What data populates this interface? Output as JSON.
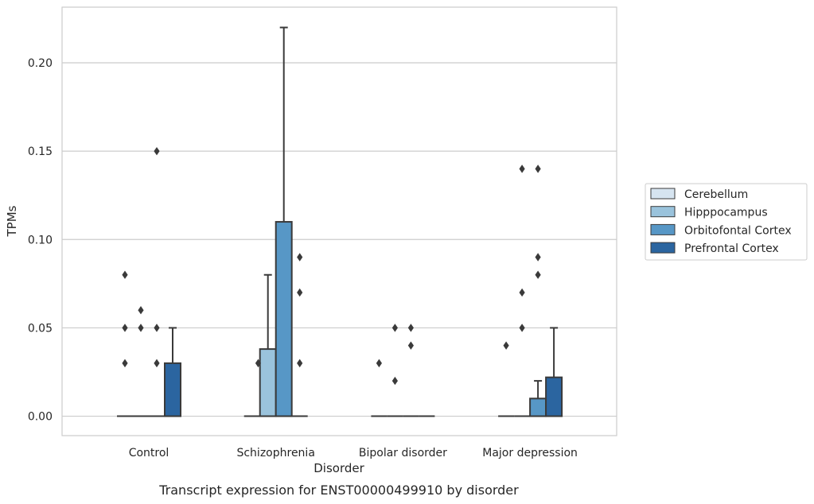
{
  "chart_data": {
    "type": "box",
    "title": "",
    "caption": "Transcript expression for ENST00000499910 by disorder",
    "xlabel": "Disorder",
    "ylabel": "TPMs",
    "ylim": [
      -0.011,
      0.2315
    ],
    "yticks": [
      "0.00",
      "0.05",
      "0.10",
      "0.15",
      "0.20"
    ],
    "grid": "horizontal",
    "legend_placement": "right",
    "categories": [
      "Control",
      "Schizophrenia",
      "Bipolar disorder",
      "Major depression"
    ],
    "series": [
      {
        "name": "Cerebellum",
        "color": "#d6e4f0",
        "boxes": [
          {
            "q1": 0,
            "median": 0,
            "q3": 0,
            "whisker_low": 0,
            "whisker_high": 0,
            "outliers": [
              0.05,
              0.03,
              0.08
            ]
          },
          {
            "q1": 0,
            "median": 0,
            "q3": 0,
            "whisker_low": 0,
            "whisker_high": 0,
            "outliers": []
          },
          {
            "q1": 0,
            "median": 0,
            "q3": 0,
            "whisker_low": 0,
            "whisker_high": 0,
            "outliers": [
              0.03
            ]
          },
          {
            "q1": 0,
            "median": 0,
            "q3": 0,
            "whisker_low": 0,
            "whisker_high": 0,
            "outliers": [
              0.04
            ]
          }
        ]
      },
      {
        "name": "Hipppocampus",
        "color": "#9ac3dc",
        "boxes": [
          {
            "q1": 0,
            "median": 0,
            "q3": 0,
            "whisker_low": 0,
            "whisker_high": 0,
            "outliers": [
              0.05,
              0.06
            ]
          },
          {
            "q1": 0,
            "median": 0,
            "q3": 0.038,
            "whisker_low": 0,
            "whisker_high": 0.08,
            "outliers": []
          },
          {
            "q1": 0,
            "median": 0,
            "q3": 0,
            "whisker_low": 0,
            "whisker_high": 0,
            "outliers": [
              0.02,
              0.05
            ]
          },
          {
            "q1": 0,
            "median": 0,
            "q3": 0,
            "whisker_low": 0,
            "whisker_high": 0,
            "outliers": [
              0.05,
              0.07,
              0.14
            ]
          }
        ]
      },
      {
        "name": "Orbitofontal Cortex",
        "color": "#5797c6",
        "boxes": [
          {
            "q1": 0,
            "median": 0,
            "q3": 0,
            "whisker_low": 0,
            "whisker_high": 0,
            "outliers": [
              0.03,
              0.05,
              0.15
            ]
          },
          {
            "q1": 0,
            "median": 0,
            "q3": 0.11,
            "whisker_low": 0,
            "whisker_high": 0.22,
            "outliers": []
          },
          {
            "q1": 0,
            "median": 0,
            "q3": 0,
            "whisker_low": 0,
            "whisker_high": 0,
            "outliers": [
              0.04,
              0.05
            ]
          },
          {
            "q1": 0,
            "median": 0,
            "q3": 0.01,
            "whisker_low": 0,
            "whisker_high": 0.02,
            "outliers": [
              0.08,
              0.09,
              0.14
            ]
          }
        ]
      },
      {
        "name": "Prefrontal Cortex",
        "color": "#2b65a0",
        "boxes": [
          {
            "q1": 0,
            "median": 0,
            "q3": 0.03,
            "whisker_low": 0,
            "whisker_high": 0.05,
            "outliers": []
          },
          {
            "q1": 0,
            "median": 0,
            "q3": 0,
            "whisker_low": 0,
            "whisker_high": 0,
            "outliers": [
              0.03,
              0.07,
              0.09
            ]
          },
          {
            "q1": 0,
            "median": 0,
            "q3": 0,
            "whisker_low": 0,
            "whisker_high": 0,
            "outliers": []
          },
          {
            "q1": 0,
            "median": 0,
            "q3": 0.022,
            "whisker_low": 0,
            "whisker_high": 0.05,
            "outliers": []
          }
        ]
      }
    ],
    "extra_outliers": [
      {
        "category": 1,
        "offset": -0.08,
        "value": 0.03
      }
    ]
  }
}
